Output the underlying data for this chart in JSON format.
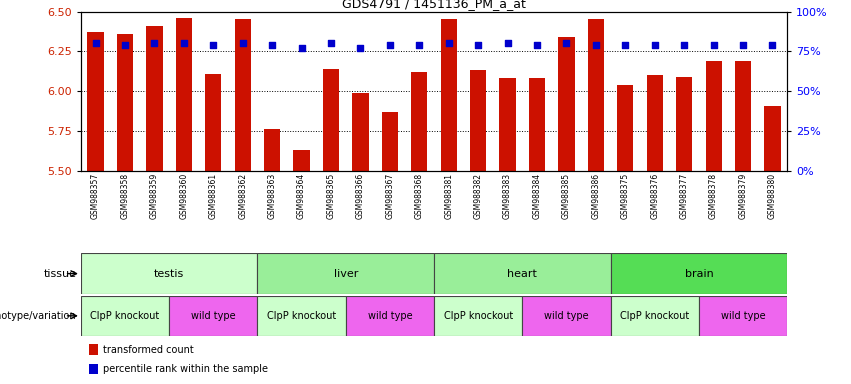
{
  "title": "GDS4791 / 1451136_PM_a_at",
  "samples": [
    "GSM988357",
    "GSM988358",
    "GSM988359",
    "GSM988360",
    "GSM988361",
    "GSM988362",
    "GSM988363",
    "GSM988364",
    "GSM988365",
    "GSM988366",
    "GSM988367",
    "GSM988368",
    "GSM988381",
    "GSM988382",
    "GSM988383",
    "GSM988384",
    "GSM988385",
    "GSM988386",
    "GSM988375",
    "GSM988376",
    "GSM988377",
    "GSM988378",
    "GSM988379",
    "GSM988380"
  ],
  "bar_values": [
    6.37,
    6.36,
    6.41,
    6.46,
    6.11,
    6.45,
    5.76,
    5.63,
    6.14,
    5.99,
    5.87,
    6.12,
    6.45,
    6.13,
    6.08,
    6.08,
    6.34,
    6.45,
    6.04,
    6.1,
    6.09,
    6.19,
    6.19,
    5.91
  ],
  "percentile_values": [
    80,
    79,
    80,
    80,
    79,
    80,
    79,
    77,
    80,
    77,
    79,
    79,
    80,
    79,
    80,
    79,
    80,
    79,
    79,
    79,
    79,
    79,
    79,
    79
  ],
  "bar_color": "#CC1100",
  "dot_color": "#0000CC",
  "ylim_left": [
    5.5,
    6.5
  ],
  "ylim_right": [
    0,
    100
  ],
  "yticks_left": [
    5.5,
    5.75,
    6.0,
    6.25,
    6.5
  ],
  "yticks_right": [
    0,
    25,
    50,
    75,
    100
  ],
  "grid_values": [
    5.75,
    6.0,
    6.25
  ],
  "tissue_groups": [
    {
      "label": "testis",
      "start": 0,
      "end": 6,
      "color": "#CCFFCC"
    },
    {
      "label": "liver",
      "start": 6,
      "end": 12,
      "color": "#99EE99"
    },
    {
      "label": "heart",
      "start": 12,
      "end": 18,
      "color": "#99EE99"
    },
    {
      "label": "brain",
      "start": 18,
      "end": 24,
      "color": "#55DD55"
    }
  ],
  "genotype_groups": [
    {
      "label": "ClpP knockout",
      "start": 0,
      "end": 3,
      "color": "#CCFFCC"
    },
    {
      "label": "wild type",
      "start": 3,
      "end": 6,
      "color": "#EE66EE"
    },
    {
      "label": "ClpP knockout",
      "start": 6,
      "end": 9,
      "color": "#CCFFCC"
    },
    {
      "label": "wild type",
      "start": 9,
      "end": 12,
      "color": "#EE66EE"
    },
    {
      "label": "ClpP knockout",
      "start": 12,
      "end": 15,
      "color": "#CCFFCC"
    },
    {
      "label": "wild type",
      "start": 15,
      "end": 18,
      "color": "#EE66EE"
    },
    {
      "label": "ClpP knockout",
      "start": 18,
      "end": 21,
      "color": "#CCFFCC"
    },
    {
      "label": "wild type",
      "start": 21,
      "end": 24,
      "color": "#EE66EE"
    }
  ],
  "bar_width": 0.55,
  "dot_size": 18,
  "figure_width": 8.51,
  "figure_height": 3.84,
  "figure_dpi": 100,
  "legend_items": [
    {
      "label": "transformed count",
      "color": "#CC1100"
    },
    {
      "label": "percentile rank within the sample",
      "color": "#0000CC"
    }
  ],
  "tissue_label": "tissue",
  "genotype_label": "genotype/variation",
  "xtick_bg": "#D8D8D8"
}
